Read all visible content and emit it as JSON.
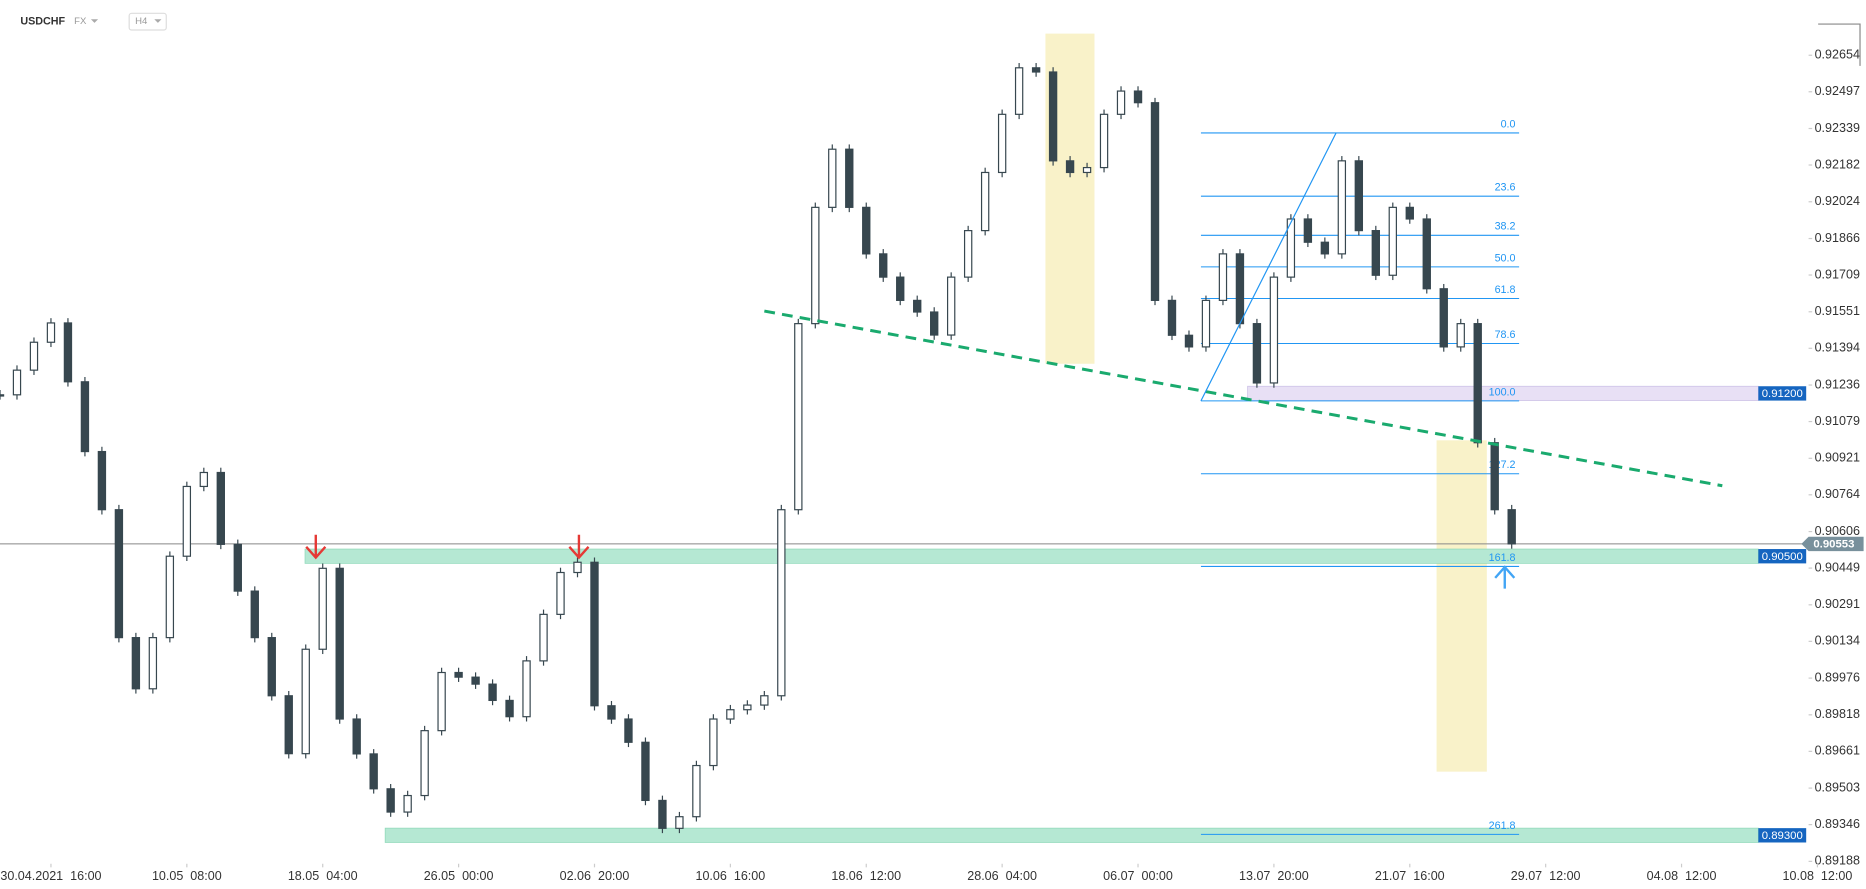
{
  "header": {
    "symbol": "USDCHF",
    "market": "FX",
    "interval": "H4"
  },
  "chart_data": {
    "type": "candlestick",
    "color_up": "#ffffff",
    "color_down": "#37474f",
    "values": [
      0.91194,
      0.913,
      0.9142,
      0.91503,
      0.9125,
      0.9095,
      0.907,
      0.9015,
      0.8993,
      0.9015,
      0.905,
      0.908,
      0.9086,
      0.90551,
      0.9035,
      0.9015,
      0.899,
      0.89651,
      0.901,
      0.90448,
      0.898,
      0.8965,
      0.895,
      0.894,
      0.89471,
      0.8975,
      0.9,
      0.8998,
      0.8995,
      0.8988,
      0.8981,
      0.9005,
      0.9025,
      0.9043,
      0.90474,
      0.89857,
      0.898,
      0.897,
      0.8945,
      0.8933,
      0.8938,
      0.896,
      0.898,
      0.8984,
      0.8986,
      0.899,
      0.907,
      0.915,
      0.92,
      0.9225,
      0.92,
      0.918,
      0.917,
      0.916,
      0.9155,
      0.91451,
      0.917,
      0.919,
      0.9215,
      0.924,
      0.926,
      0.92582,
      0.922,
      0.9215,
      0.92171,
      0.924,
      0.925,
      0.9245,
      0.916,
      0.9145,
      0.914,
      0.916,
      0.918,
      0.915,
      0.91245,
      0.917,
      0.9195,
      0.9185,
      0.918,
      0.922,
      0.919,
      0.91708,
      0.92,
      0.9195,
      0.9165,
      0.914,
      0.915,
      0.90988,
      0.907,
      0.90553
    ],
    "xlim": [
      0,
      110
    ],
    "xticks": [
      {
        "value": 3,
        "label": "30.04.2021  16:00"
      },
      {
        "value": 11,
        "label": "10.05  08:00"
      },
      {
        "value": 19,
        "label": "18.05  04:00"
      },
      {
        "value": 27,
        "label": "26.05  00:00"
      },
      {
        "value": 35,
        "label": "02.06  20:00"
      },
      {
        "value": 43,
        "label": "10.06  16:00"
      },
      {
        "value": 51,
        "label": "18.06  12:00"
      },
      {
        "value": 59,
        "label": "28.06  04:00"
      },
      {
        "value": 67,
        "label": "06.07  00:00"
      },
      {
        "value": 75,
        "label": "13.07  20:00"
      },
      {
        "value": 83,
        "label": "21.07  16:00"
      },
      {
        "value": 91,
        "label": "29.07  12:00"
      },
      {
        "value": 99,
        "label": "04.08  12:00"
      },
      {
        "value": 107,
        "label": "10.08  12:00"
      }
    ],
    "ylim": [
      0.89188,
      0.92891
    ],
    "yticks": [
      0.92654,
      0.92497,
      0.92339,
      0.92182,
      0.92024,
      0.91866,
      0.91709,
      0.91551,
      0.91394,
      0.91236,
      0.91079,
      0.90921,
      0.90764,
      0.90606,
      0.90449,
      0.90291,
      0.90134,
      0.89976,
      0.89818,
      0.89661,
      0.89503,
      0.89346,
      0.89188
    ],
    "current_price": 0.90553,
    "zones": [
      {
        "value": 0.912,
        "label": "0.91200",
        "color": "#e8e0f5"
      },
      {
        "value": 0.905,
        "label": "0.90500",
        "color": "#b5e8d3"
      },
      {
        "value": 0.893,
        "label": "0.89300",
        "color": "#b5e8d3"
      }
    ],
    "fibonacci": {
      "high": 0.9232,
      "low": 0.91168,
      "color": "#2196f3",
      "levels": [
        {
          "value": 0,
          "label": "0.0"
        },
        23.6,
        38.2,
        {
          "value": 50,
          "label": "50.0"
        },
        61.8,
        78.6,
        {
          "value": 100,
          "label": "100.0"
        },
        127.2,
        161.8,
        261.8
      ]
    },
    "trendline": {
      "x": [
        45,
        101.4
      ],
      "y": [
        0.91554,
        0.90803
      ],
      "color": "#1aaa6e"
    }
  }
}
